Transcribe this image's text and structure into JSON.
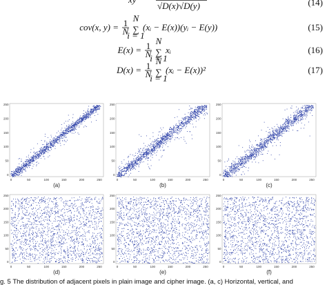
{
  "equations": [
    {
      "lhs": "xy",
      "rhs": "√D(x)√D(y)",
      "number": "(14)"
    },
    {
      "lhs": "cov(x, y) =",
      "frac_num": "1",
      "frac_den": "N",
      "sum_sign": "∑",
      "sum_top": "N",
      "sum_bottom": "i = 1",
      "rhs": "(xᵢ − E(x))(yᵢ − E(y))",
      "number": "(15)"
    },
    {
      "lhs": "E(x) =",
      "frac_num": "1",
      "frac_den": "N",
      "sum_sign": "∑",
      "sum_top": "N",
      "sum_bottom": "i = 1",
      "rhs": "xᵢ",
      "number": "(16)"
    },
    {
      "lhs": "D(x) =",
      "frac_num": "1",
      "frac_den": "N",
      "sum_sign": "∑",
      "sum_top": "N",
      "sum_bottom": "i = 1",
      "rhs": "(xᵢ − E(x))²",
      "number": "(17)"
    }
  ],
  "figure": {
    "axis_ticks": [
      "0",
      "50",
      "100",
      "150",
      "200",
      "250"
    ],
    "panels": [
      "(a)",
      "(b)",
      "(c)",
      "(d)",
      "(e)",
      "(f)"
    ],
    "caption": "g. 5  The distribution of adjacent pixels in plain image and cipher image. (a, c) Horizontal, vertical, and"
  }
}
